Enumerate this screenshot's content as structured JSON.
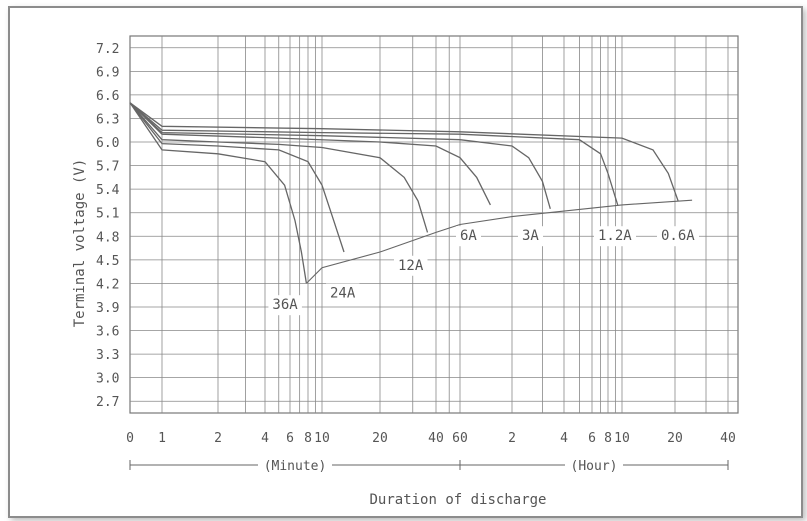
{
  "chart_data": {
    "type": "line",
    "title": "",
    "xlabel": "Duration of discharge",
    "ylabel": "Terminal voltage (V)",
    "ylim": [
      2.55,
      7.35
    ],
    "y_ticks": [
      "7.2",
      "6.9",
      "6.6",
      "6.3",
      "6.0",
      "5.7",
      "5.4",
      "5.1",
      "4.8",
      "4.5",
      "4.2",
      "3.9",
      "3.6",
      "3.3",
      "3.0",
      "2.7"
    ],
    "x_ticks": [
      {
        "label": "0",
        "min": 0
      },
      {
        "label": "1",
        "min": 1
      },
      {
        "label": "2",
        "min": 2
      },
      {
        "label": "4",
        "min": 4
      },
      {
        "label": "6",
        "min": 6
      },
      {
        "label": "8",
        "min": 8
      },
      {
        "label": "10",
        "min": 10
      },
      {
        "label": "20",
        "min": 20
      },
      {
        "label": "40",
        "min": 40
      },
      {
        "label": "60",
        "min": 60
      },
      {
        "label": "2",
        "min": 120
      },
      {
        "label": "4",
        "min": 240
      },
      {
        "label": "6",
        "min": 360
      },
      {
        "label": "8",
        "min": 480
      },
      {
        "label": "10",
        "min": 600
      },
      {
        "label": "20",
        "min": 1200
      },
      {
        "label": "40",
        "min": 2400
      }
    ],
    "x_groups": [
      {
        "label": "(Minute)",
        "from": 0,
        "to": 60
      },
      {
        "label": "(Hour)",
        "from": 60,
        "to": 2400
      }
    ],
    "grid": true,
    "series": [
      {
        "name": "36A",
        "x": [
          0,
          1,
          2,
          4,
          5.5,
          6.5,
          7.2,
          7.8
        ],
        "y": [
          6.5,
          5.9,
          5.85,
          5.75,
          5.45,
          5.0,
          4.6,
          4.2
        ]
      },
      {
        "name": "24A",
        "x": [
          0,
          1,
          2,
          5,
          8,
          10,
          11.5,
          13
        ],
        "y": [
          6.5,
          5.98,
          5.95,
          5.9,
          5.75,
          5.45,
          5.0,
          4.6
        ]
      },
      {
        "name": "12A",
        "x": [
          0,
          1,
          2,
          5,
          10,
          20,
          27,
          32,
          36
        ],
        "y": [
          6.5,
          6.03,
          6.0,
          5.97,
          5.93,
          5.8,
          5.55,
          5.25,
          4.85
        ]
      },
      {
        "name": "6A",
        "x": [
          0,
          1,
          5,
          20,
          40,
          60,
          75,
          90
        ],
        "y": [
          6.5,
          6.1,
          6.05,
          6.0,
          5.95,
          5.8,
          5.55,
          5.2
        ]
      },
      {
        "name": "3A",
        "x": [
          0,
          1,
          10,
          60,
          120,
          150,
          180,
          200
        ],
        "y": [
          6.5,
          6.12,
          6.08,
          6.03,
          5.95,
          5.8,
          5.5,
          5.15
        ]
      },
      {
        "name": "1.2A",
        "x": [
          0,
          1,
          10,
          60,
          300,
          420,
          480,
          560
        ],
        "y": [
          6.5,
          6.15,
          6.12,
          6.1,
          6.03,
          5.85,
          5.6,
          5.2
        ]
      },
      {
        "name": "0.6A",
        "x": [
          0,
          1,
          10,
          60,
          600,
          900,
          1100,
          1250
        ],
        "y": [
          6.5,
          6.2,
          6.17,
          6.13,
          6.05,
          5.9,
          5.6,
          5.25
        ]
      }
    ],
    "cutoff_line": {
      "x": [
        7.8,
        10,
        20,
        40,
        60,
        120,
        240,
        600,
        1500
      ],
      "y": [
        4.2,
        4.4,
        4.6,
        4.85,
        4.95,
        5.05,
        5.12,
        5.2,
        5.26
      ]
    }
  }
}
